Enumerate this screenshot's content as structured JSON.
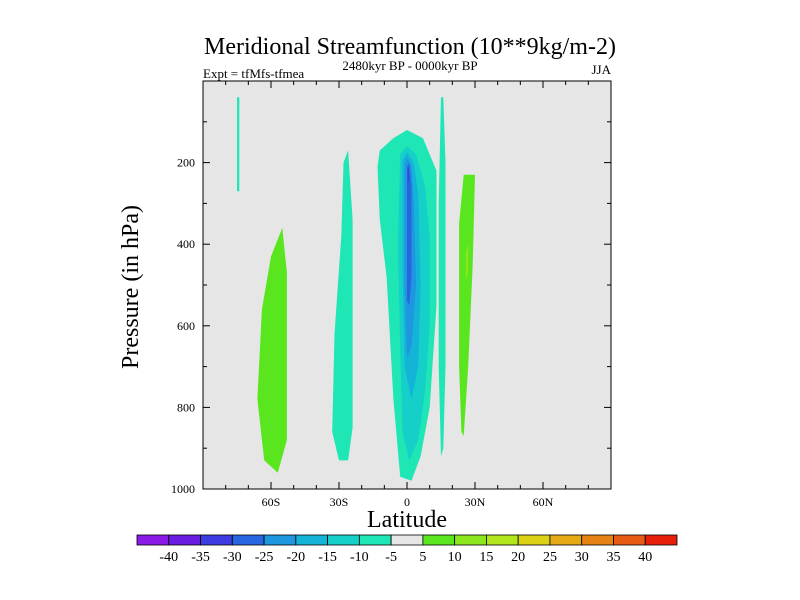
{
  "chart_data": {
    "type": "contour",
    "title": "Meridional Streamfunction (10**9kg/m-2)",
    "subtitle_left": "Expt = tfMfs-tfmea",
    "subtitle_center": "2480kyr BP - 0000kyr BP",
    "subtitle_right": "JJA",
    "xlabel": "Latitude",
    "ylabel": "Pressure (in hPa)",
    "xlim": [
      -90,
      90
    ],
    "ylim": [
      0,
      1000
    ],
    "y_inverted": true,
    "x_ticks": [
      {
        "value": -60,
        "label": "60S"
      },
      {
        "value": -30,
        "label": "30S"
      },
      {
        "value": 0,
        "label": "0"
      },
      {
        "value": 30,
        "label": "30N"
      },
      {
        "value": 60,
        "label": "60N"
      }
    ],
    "y_ticks": [
      {
        "value": 200,
        "label": "200"
      },
      {
        "value": 400,
        "label": "400"
      },
      {
        "value": 600,
        "label": "600"
      },
      {
        "value": 800,
        "label": "800"
      },
      {
        "value": 1000,
        "label": "1000"
      }
    ],
    "colorbar": {
      "levels": [
        -40,
        -35,
        -30,
        -25,
        -20,
        -15,
        -10,
        -5,
        5,
        10,
        15,
        20,
        25,
        30,
        35,
        40
      ],
      "colors": [
        "#8c1ae6",
        "#6a1ce0",
        "#3c3ce0",
        "#2866e0",
        "#1e96e0",
        "#14b4d8",
        "#14d0c8",
        "#1ee6b4",
        "#e6e6e6",
        "#5ae61e",
        "#8ce61e",
        "#b4e61e",
        "#dcd214",
        "#e6aa14",
        "#e68214",
        "#e65a14",
        "#e61e0a"
      ]
    },
    "regions": [
      {
        "name": "pos-5to10-sh-midlat",
        "color": "#5ae61e",
        "points": [
          [
            -63,
            930
          ],
          [
            -66,
            780
          ],
          [
            -64,
            560
          ],
          [
            -60,
            430
          ],
          [
            -55,
            360
          ],
          [
            -53,
            470
          ],
          [
            -53,
            880
          ],
          [
            -57,
            960
          ]
        ]
      },
      {
        "name": "neg-5to10-sh-subtrop",
        "color": "#1ee6b4",
        "points": [
          [
            -30,
            930
          ],
          [
            -33,
            860
          ],
          [
            -32,
            620
          ],
          [
            -29,
            380
          ],
          [
            -28,
            200
          ],
          [
            -26,
            170
          ],
          [
            -24,
            340
          ],
          [
            -24,
            850
          ],
          [
            -26,
            930
          ]
        ]
      },
      {
        "name": "neg-5to10-equatorial",
        "color": "#1ee6b4",
        "points": [
          [
            -13,
            210
          ],
          [
            -12,
            170
          ],
          [
            -6,
            140
          ],
          [
            0,
            120
          ],
          [
            7,
            140
          ],
          [
            13,
            220
          ],
          [
            13,
            550
          ],
          [
            10,
            800
          ],
          [
            6,
            920
          ],
          [
            2,
            980
          ],
          [
            -3,
            970
          ],
          [
            -6,
            780
          ],
          [
            -9,
            480
          ],
          [
            -12,
            340
          ]
        ]
      },
      {
        "name": "neg-10to15-equatorial",
        "color": "#14d0c8",
        "points": [
          [
            -3,
            180
          ],
          [
            0,
            160
          ],
          [
            4,
            180
          ],
          [
            8,
            260
          ],
          [
            10,
            380
          ],
          [
            10,
            600
          ],
          [
            8,
            760
          ],
          [
            5,
            880
          ],
          [
            1,
            930
          ],
          [
            -2,
            860
          ],
          [
            -3,
            650
          ],
          [
            -4,
            400
          ]
        ]
      },
      {
        "name": "neg-15to20-equatorial",
        "color": "#14b4d8",
        "points": [
          [
            -2,
            195
          ],
          [
            0,
            175
          ],
          [
            3,
            200
          ],
          [
            5,
            280
          ],
          [
            6,
            500
          ],
          [
            5,
            700
          ],
          [
            2,
            780
          ],
          [
            -1,
            700
          ],
          [
            -2,
            450
          ]
        ]
      },
      {
        "name": "neg-20to25-equatorial",
        "color": "#1e96e0",
        "points": [
          [
            -1,
            205
          ],
          [
            0,
            185
          ],
          [
            2,
            210
          ],
          [
            3,
            300
          ],
          [
            4,
            500
          ],
          [
            2,
            650
          ],
          [
            0,
            680
          ],
          [
            -1,
            500
          ]
        ]
      },
      {
        "name": "neg-25to30-equatorial",
        "color": "#2866e0",
        "points": [
          [
            0,
            210
          ],
          [
            1,
            200
          ],
          [
            2,
            260
          ],
          [
            2,
            480
          ],
          [
            1,
            550
          ],
          [
            0,
            540
          ]
        ]
      },
      {
        "name": "neg-30to35-core",
        "color": "#3c3ce0",
        "points": [
          [
            0.3,
            215
          ],
          [
            0.8,
            215
          ],
          [
            0.8,
            245
          ],
          [
            0.3,
            245
          ]
        ]
      },
      {
        "name": "neg-5to10-mid-plume",
        "color": "#1ee6b4",
        "points": [
          [
            15,
            40
          ],
          [
            16,
            40
          ],
          [
            17,
            200
          ],
          [
            17,
            700
          ],
          [
            16,
            900
          ],
          [
            15,
            920
          ],
          [
            14,
            700
          ],
          [
            14,
            300
          ]
        ]
      },
      {
        "name": "neg-5to10-sh-thin",
        "color": "#1ee6b4",
        "points": [
          [
            -75,
            40
          ],
          [
            -74,
            40
          ],
          [
            -74,
            100
          ],
          [
            -74,
            270
          ],
          [
            -75,
            270
          ],
          [
            -75,
            100
          ]
        ]
      },
      {
        "name": "pos-5to10-nh-subtrop",
        "color": "#5ae61e",
        "points": [
          [
            24,
            860
          ],
          [
            23,
            700
          ],
          [
            23,
            350
          ],
          [
            25,
            230
          ],
          [
            30,
            230
          ],
          [
            29,
            450
          ],
          [
            27,
            700
          ],
          [
            25,
            870
          ]
        ]
      },
      {
        "name": "pos-10to15-nh-core",
        "color": "#8ce61e",
        "points": [
          [
            26,
            420
          ],
          [
            27,
            400
          ],
          [
            27,
            470
          ],
          [
            26,
            490
          ]
        ]
      }
    ]
  }
}
